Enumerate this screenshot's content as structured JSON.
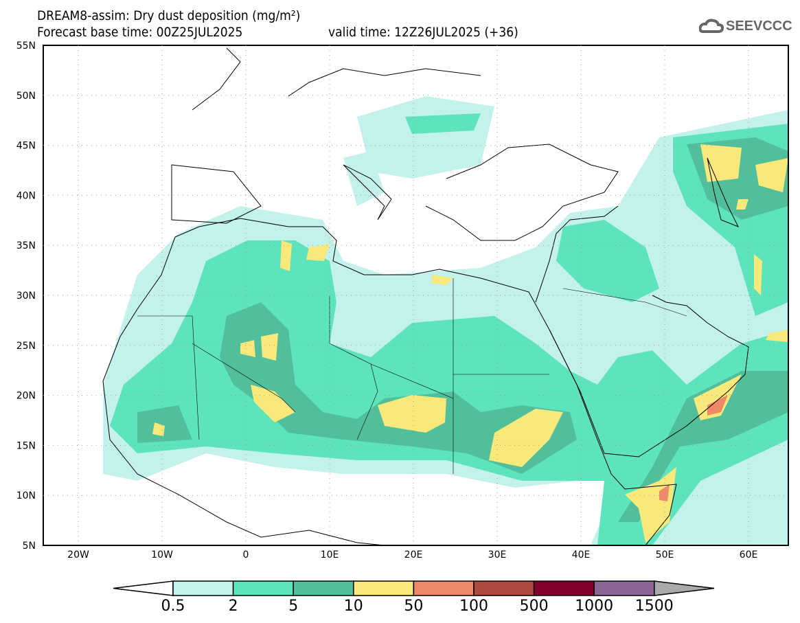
{
  "header": {
    "title": "DREAM8-assim: Dry dust deposition (mg/m²)",
    "base_time": "Forecast base time: 00Z25JUL2025",
    "valid_time": "valid time: 12Z26JUL2025 (+36)"
  },
  "logo": {
    "text": "SEEVCCC",
    "icon": "cloud-icon"
  },
  "map": {
    "lon_labels": [
      "20W",
      "10W",
      "0",
      "10E",
      "20E",
      "30E",
      "40E",
      "50E",
      "60E"
    ],
    "lat_labels": [
      "55N",
      "50N",
      "45N",
      "40N",
      "35N",
      "30N",
      "25N",
      "20N",
      "15N",
      "10N",
      "5N"
    ]
  },
  "legend": {
    "labels": [
      "0.5",
      "2",
      "5",
      "10",
      "50",
      "100",
      "500",
      "1000",
      "1500"
    ],
    "colors": [
      "#ffffff",
      "#c3f1eb",
      "#5ee4bd",
      "#52bf9c",
      "#f8e97a",
      "#ee8a68",
      "#ad4b42",
      "#82002a",
      "#8d6698",
      "#aaaaaa"
    ]
  }
}
